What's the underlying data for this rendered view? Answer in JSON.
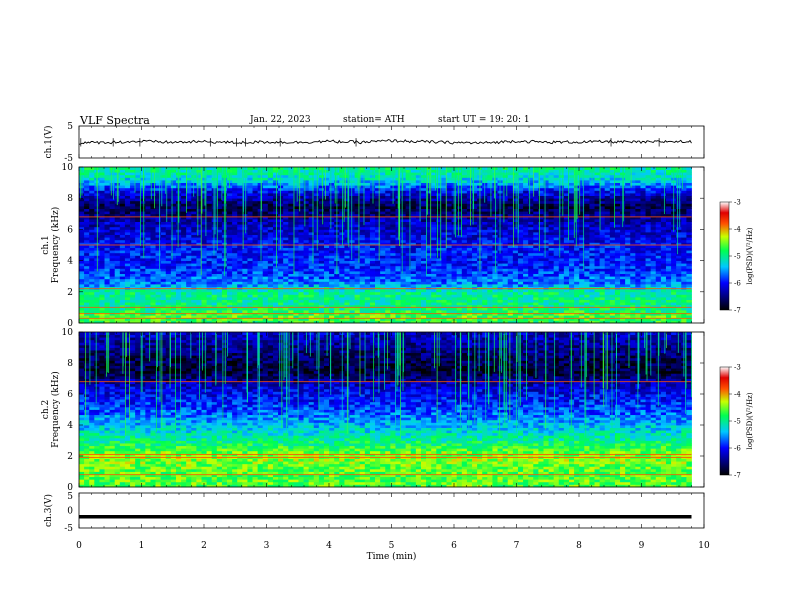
{
  "header": {
    "title": "VLF Spectra",
    "date": "Jan. 22, 2023",
    "station": "station= ATH",
    "start": "start UT =  19: 20: 1"
  },
  "chart_data": [
    {
      "type": "line",
      "panel": "ch1-waveform",
      "ylabel": "ch.1(V)",
      "ylim": [
        -5,
        5
      ],
      "yticks": [
        "5",
        "-5"
      ],
      "xlim": [
        0,
        10
      ],
      "x_minutes": [
        0,
        0.5,
        1,
        1.5,
        2,
        2.5,
        3,
        3.5,
        4,
        4.5,
        5,
        5.5,
        6,
        6.5,
        7,
        7.5,
        8,
        8.5,
        9,
        9.5,
        9.8
      ],
      "y_volts": [
        -0.3,
        -0.1,
        0.2,
        -0.1,
        0.1,
        -0.2,
        0.0,
        -0.1,
        0.2,
        -0.1,
        0.4,
        0.1,
        -0.2,
        -0.3,
        0.3,
        -0.1,
        0.0,
        0.1,
        -0.1,
        0.2,
        0.0
      ],
      "series_color": "#000000"
    },
    {
      "type": "heatmap",
      "panel": "ch1-spectrogram",
      "ylabel_top": "ch.1",
      "ylabel": "Frequency (kHz)",
      "ylim": [
        0,
        10
      ],
      "yticks": [
        "0",
        "2",
        "4",
        "6",
        "8",
        "10"
      ],
      "xlim": [
        0,
        10
      ],
      "data_end_min": 9.8,
      "colorbar_label": "log(PSD)(V²/Hz)",
      "colorbar_range": [
        -7,
        -3
      ],
      "colorbar_ticks": [
        "-3",
        "-4",
        "-5",
        "-6",
        "-7"
      ],
      "band_profile": [
        {
          "f": 0.0,
          "level": -4.8
        },
        {
          "f": 0.5,
          "level": -4.6
        },
        {
          "f": 1.0,
          "level": -5.0
        },
        {
          "f": 2.0,
          "level": -5.0
        },
        {
          "f": 2.5,
          "level": -5.6
        },
        {
          "f": 3.5,
          "level": -5.9
        },
        {
          "f": 5.0,
          "level": -6.0
        },
        {
          "f": 6.5,
          "level": -6.3
        },
        {
          "f": 7.5,
          "level": -6.7
        },
        {
          "f": 8.5,
          "level": -6.0
        },
        {
          "f": 9.3,
          "level": -5.2
        },
        {
          "f": 10.0,
          "level": -5.0
        }
      ],
      "lines_khz": [
        0.3,
        0.6,
        1.0,
        2.2,
        5.0,
        6.8
      ]
    },
    {
      "type": "heatmap",
      "panel": "ch2-spectrogram",
      "ylabel_top": "ch.2",
      "ylabel": "Frequency (kHz)",
      "ylim": [
        0,
        10
      ],
      "yticks": [
        "0",
        "2",
        "4",
        "6",
        "8",
        "10"
      ],
      "xlim": [
        0,
        10
      ],
      "data_end_min": 9.8,
      "colorbar_label": "log(PSD)(V²/Hz)",
      "colorbar_range": [
        -7,
        -3
      ],
      "colorbar_ticks": [
        "-3",
        "-4",
        "-5",
        "-6",
        "-7"
      ],
      "band_profile": [
        {
          "f": 0.0,
          "level": -4.6
        },
        {
          "f": 1.0,
          "level": -4.6
        },
        {
          "f": 2.0,
          "level": -4.4
        },
        {
          "f": 3.0,
          "level": -5.0
        },
        {
          "f": 4.0,
          "level": -5.4
        },
        {
          "f": 5.0,
          "level": -5.8
        },
        {
          "f": 6.5,
          "level": -6.2
        },
        {
          "f": 7.5,
          "level": -6.8
        },
        {
          "f": 8.5,
          "level": -6.6
        },
        {
          "f": 10.0,
          "level": -6.2
        }
      ],
      "lines_khz": [
        0.8,
        1.9,
        2.1,
        6.8
      ]
    },
    {
      "type": "line",
      "panel": "ch3-waveform",
      "ylabel": "ch.3(V)",
      "ylim": [
        -5,
        5
      ],
      "yticks": [
        "5",
        "0",
        "-5"
      ],
      "xlim": [
        0,
        10
      ],
      "x_minutes": [
        0,
        9.8
      ],
      "y_volts": [
        -1.8,
        -1.8
      ],
      "series_color": "#000000"
    }
  ],
  "xaxis": {
    "label": "Time (min)",
    "ticks": [
      "0",
      "1",
      "2",
      "3",
      "4",
      "5",
      "6",
      "7",
      "8",
      "9",
      "10"
    ]
  }
}
